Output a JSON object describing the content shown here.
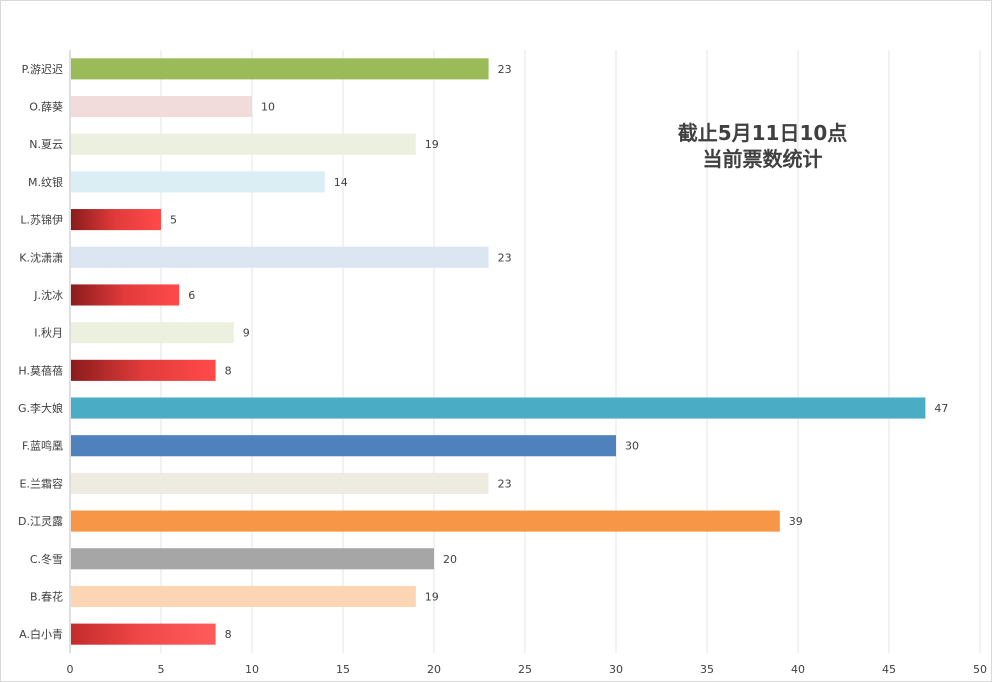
{
  "chart_data": {
    "type": "bar",
    "orientation": "horizontal",
    "title_lines": [
      "截止5月11日10点",
      "当前票数统计"
    ],
    "categories": [
      "P.游迟迟",
      "O.薛葵",
      "N.夏云",
      "M.纹银",
      "L.苏锦伊",
      "K.沈潇潇",
      "J.沈冰",
      "I.秋月",
      "H.莫蓓蓓",
      "G.李大娘",
      "F.蓝鸣凰",
      "E.兰霜容",
      "D.江灵露",
      "C.冬雪",
      "B.春花",
      "A.白小青"
    ],
    "values": [
      23,
      10,
      19,
      14,
      5,
      23,
      6,
      9,
      8,
      47,
      30,
      23,
      39,
      20,
      19,
      8
    ],
    "colors": [
      "#9bbb59",
      "#f2dcdb",
      "#ebf1de",
      "#dbeef4",
      "gradient-red",
      "#dce6f2",
      "gradient-red",
      "#ebf1de",
      "gradient-red",
      "#4bacc6",
      "#4f81bd",
      "#eeece1",
      "#f79646",
      "#a6a6a6",
      "#fcd5b5",
      "gradient-red-light"
    ],
    "xlim": [
      0,
      50
    ],
    "xticks": [
      0,
      5,
      10,
      15,
      20,
      25,
      30,
      35,
      40,
      45,
      50
    ],
    "grid": true,
    "data_labels": true
  }
}
